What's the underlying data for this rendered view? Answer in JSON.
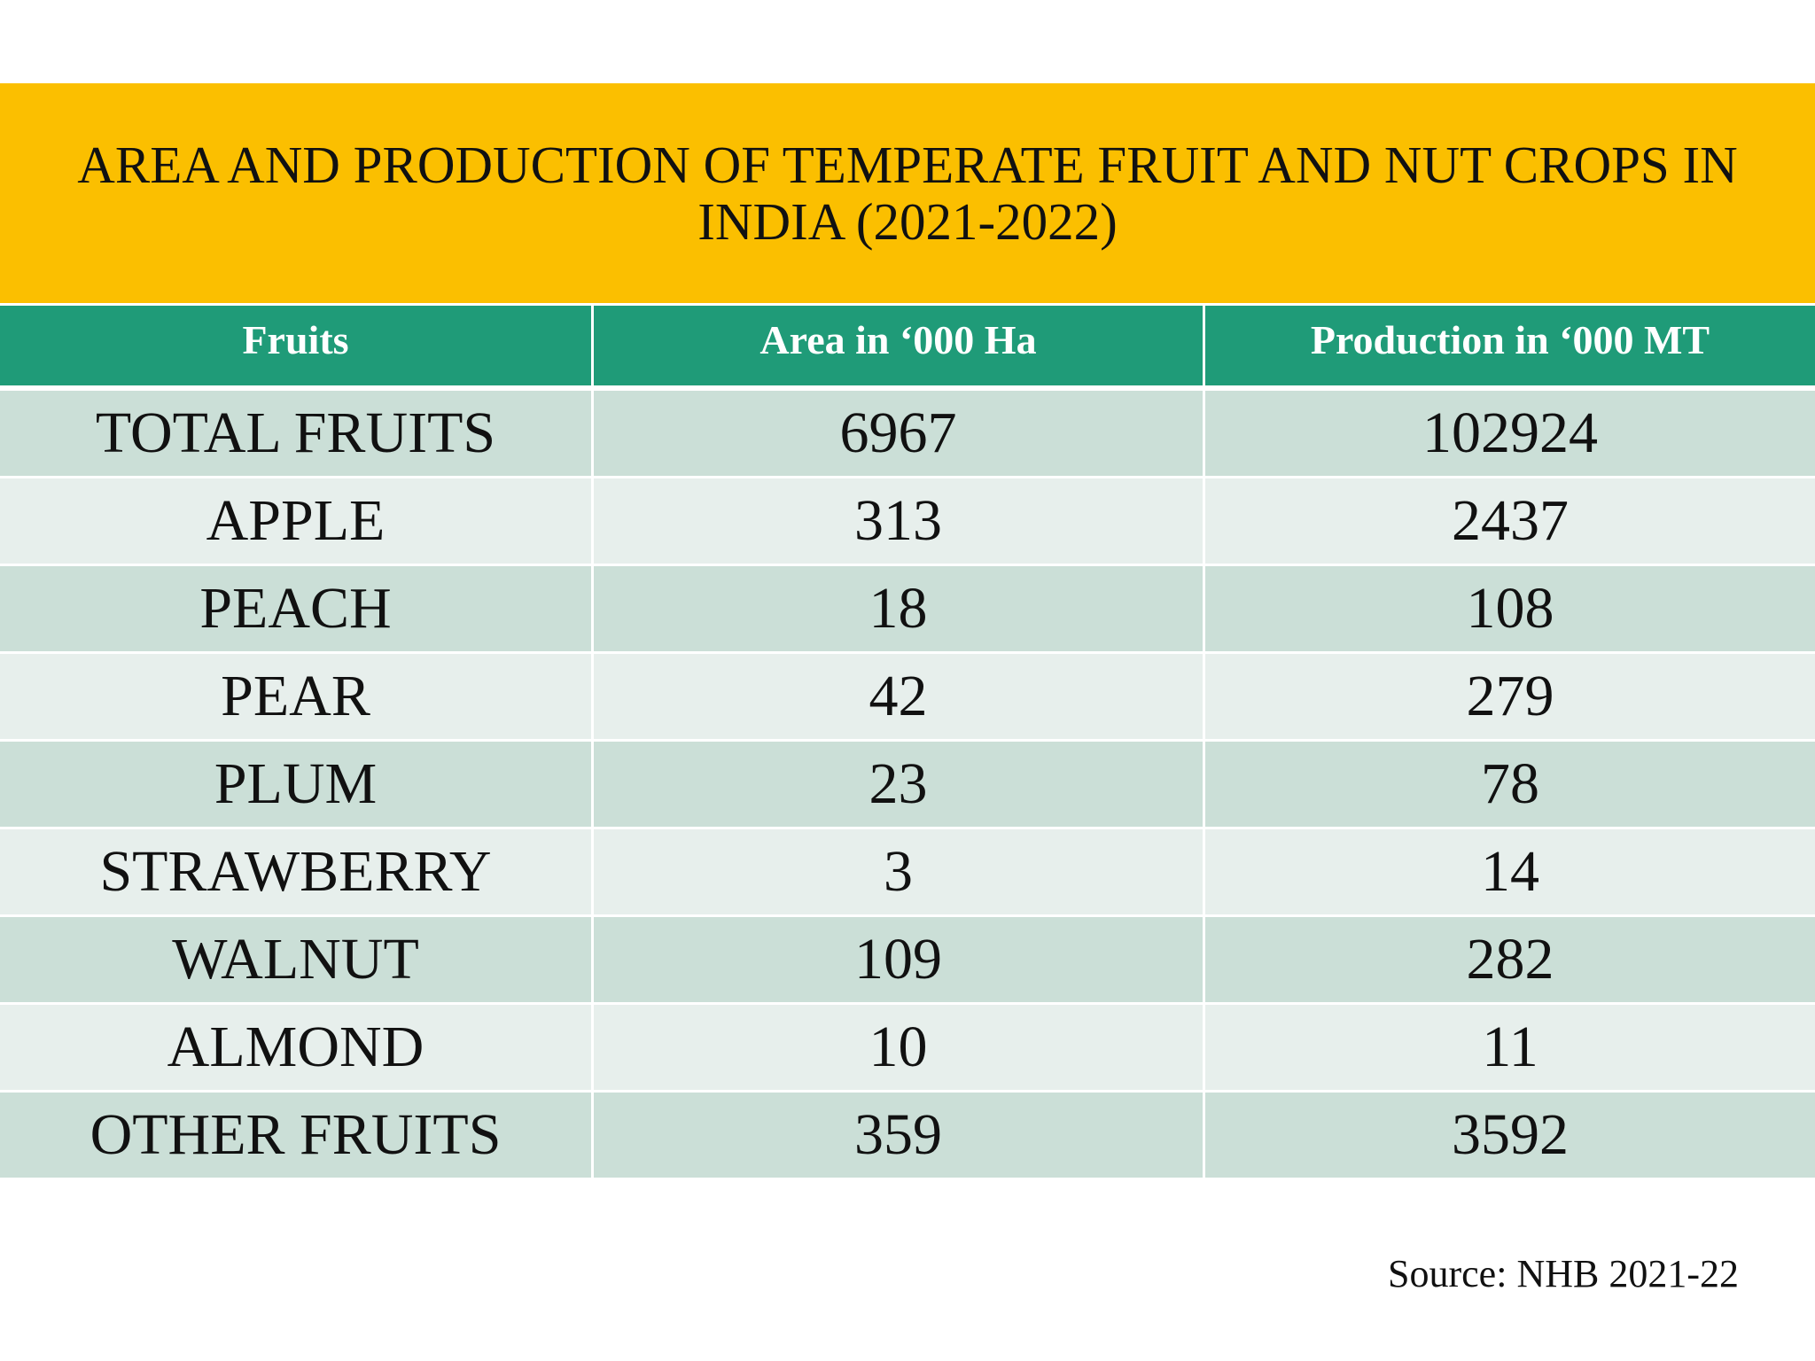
{
  "title": {
    "line1": "AREA AND PRODUCTION OF TEMPERATE FRUIT AND NUT CROPS IN",
    "line2": "INDIA (2021-2022)"
  },
  "colors": {
    "title_band": "#fbbf00",
    "header_row": "#1f9b78",
    "row_dark": "#cbdfd7",
    "row_light": "#e7efec"
  },
  "table": {
    "headers": [
      "Fruits",
      "Area in ‘000 Ha",
      "Production in ‘000 MT"
    ],
    "rows": [
      {
        "fruit": "TOTAL FRUITS",
        "area": "6967",
        "production": "102924"
      },
      {
        "fruit": "APPLE",
        "area": "313",
        "production": "2437"
      },
      {
        "fruit": "PEACH",
        "area": "18",
        "production": "108"
      },
      {
        "fruit": "PEAR",
        "area": "42",
        "production": "279"
      },
      {
        "fruit": "PLUM",
        "area": "23",
        "production": "78"
      },
      {
        "fruit": "STRAWBERRY",
        "area": "3",
        "production": "14"
      },
      {
        "fruit": "WALNUT",
        "area": "109",
        "production": "282"
      },
      {
        "fruit": "ALMOND",
        "area": "10",
        "production": "11"
      },
      {
        "fruit": "OTHER FRUITS",
        "area": "359",
        "production": "3592"
      }
    ]
  },
  "source": "Source: NHB 2021-22"
}
